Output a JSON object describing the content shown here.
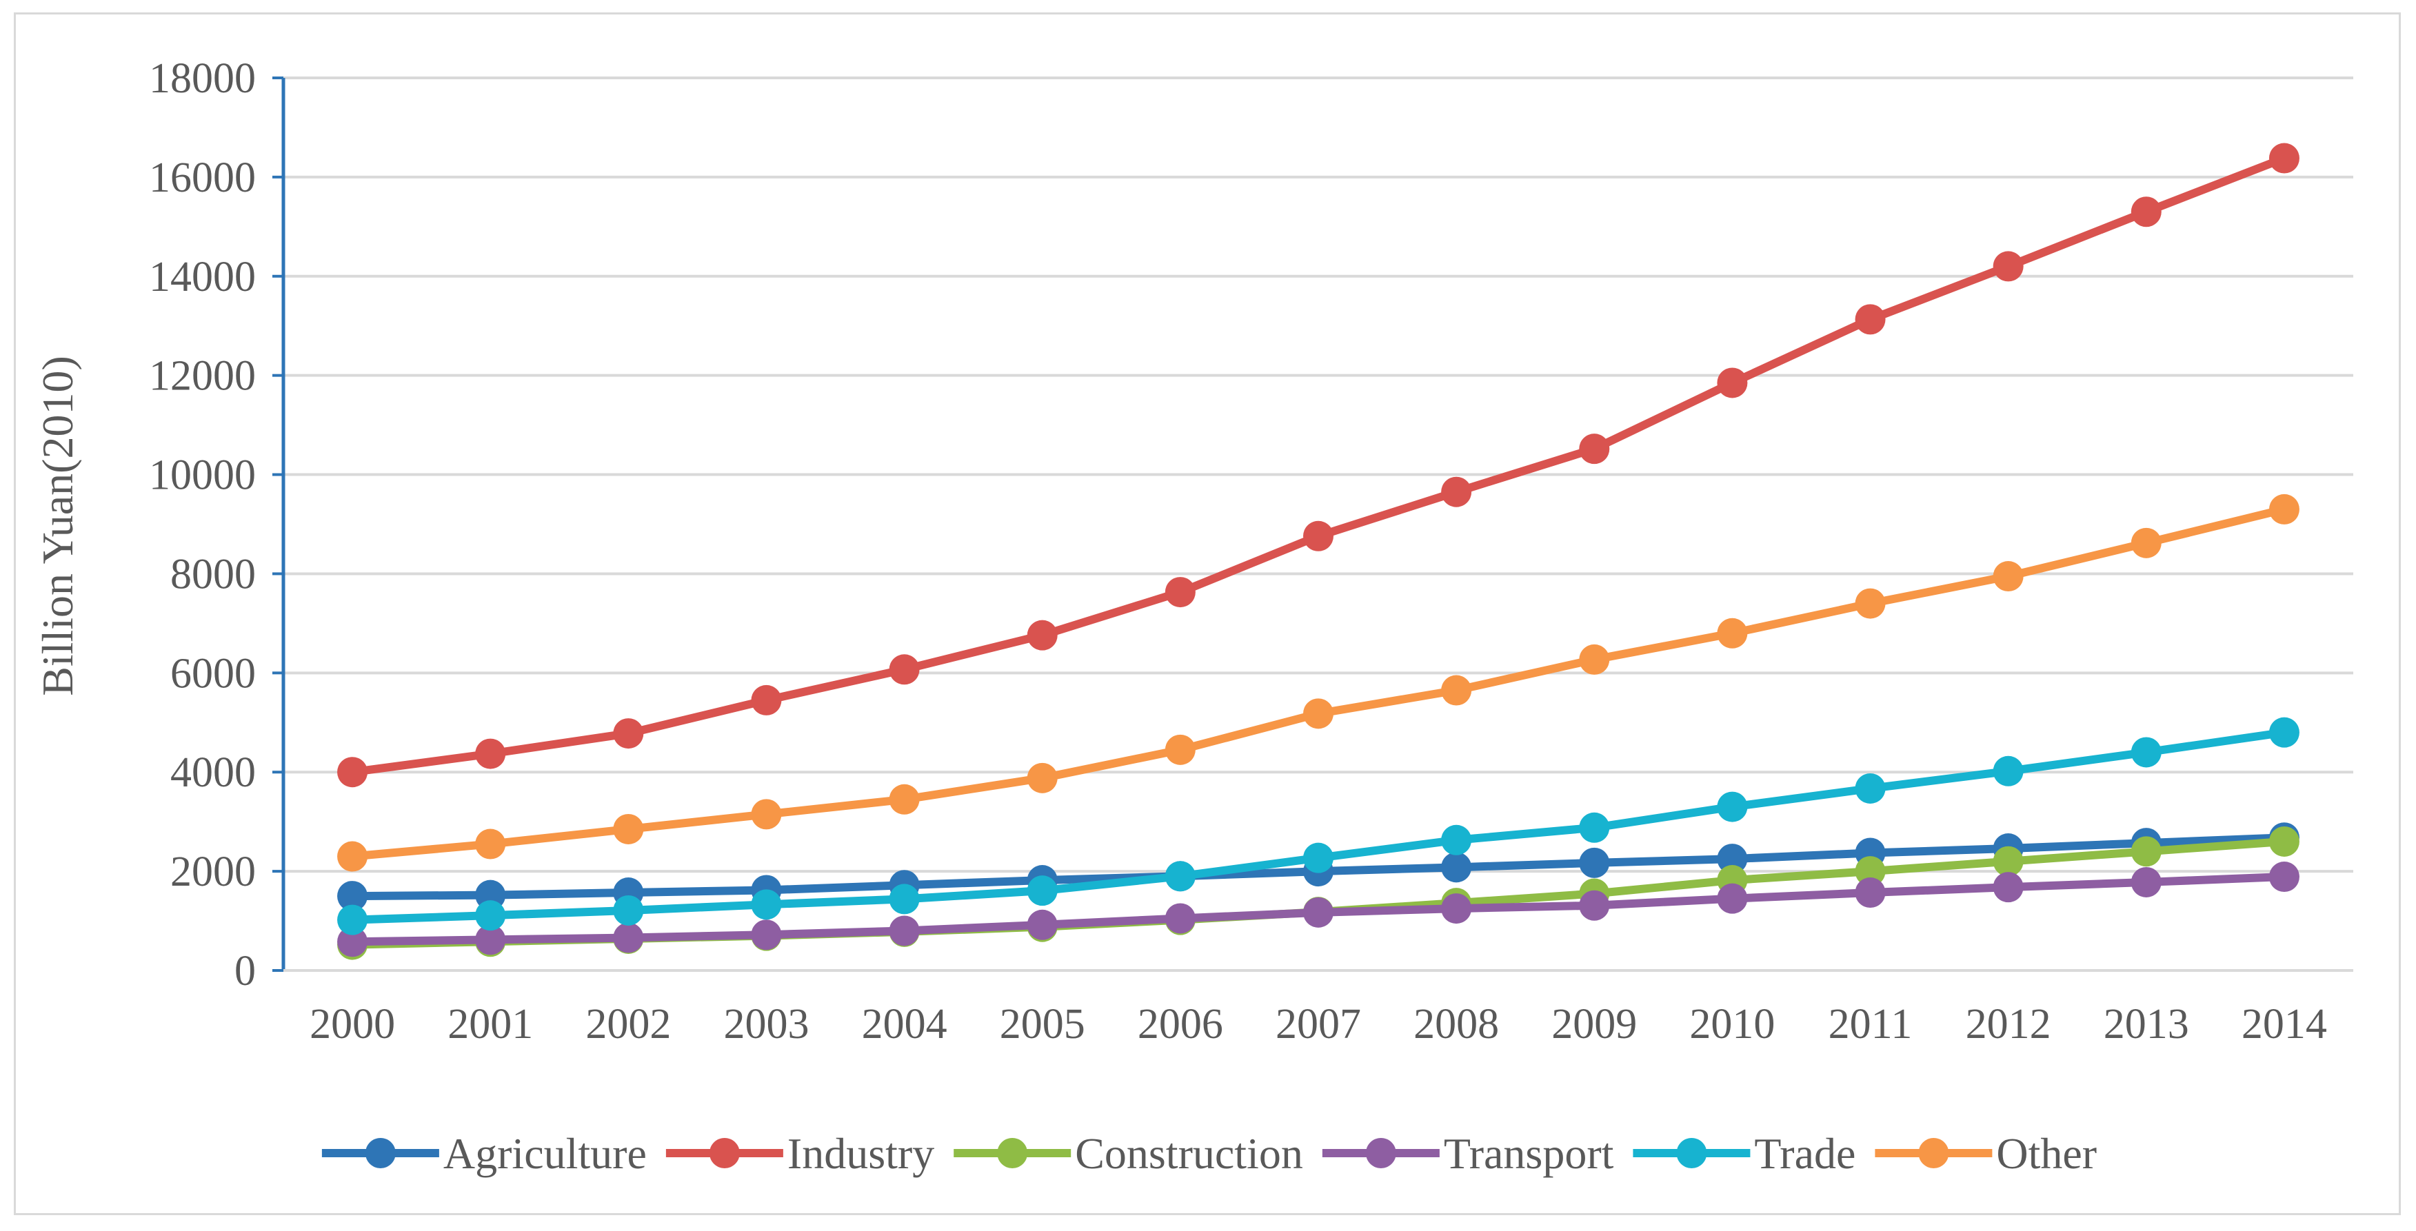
{
  "chart_data": {
    "type": "line",
    "title": "",
    "xlabel": "",
    "ylabel": "Billion Yuan(2010)",
    "ylim": [
      0,
      18000
    ],
    "yticks": [
      0,
      2000,
      4000,
      6000,
      8000,
      10000,
      12000,
      14000,
      16000,
      18000
    ],
    "grid": true,
    "legend_position": "bottom",
    "categories": [
      "2000",
      "2001",
      "2002",
      "2003",
      "2004",
      "2005",
      "2006",
      "2007",
      "2008",
      "2009",
      "2010",
      "2011",
      "2012",
      "2013",
      "2014"
    ],
    "series": [
      {
        "name": "Agriculture",
        "color": "#2e75b6",
        "values": [
          1500,
          1520,
          1570,
          1620,
          1720,
          1820,
          1900,
          2000,
          2080,
          2170,
          2250,
          2370,
          2460,
          2570,
          2680
        ]
      },
      {
        "name": "Industry",
        "color": "#d9534f",
        "values": [
          4000,
          4370,
          4780,
          5450,
          6070,
          6760,
          7630,
          8760,
          9650,
          10520,
          11850,
          13130,
          14200,
          15300,
          16380
        ]
      },
      {
        "name": "Construction",
        "color": "#8fbc45",
        "values": [
          520,
          580,
          640,
          700,
          780,
          880,
          1020,
          1180,
          1360,
          1550,
          1820,
          2000,
          2200,
          2400,
          2600
        ]
      },
      {
        "name": "Transport",
        "color": "#8e5ea2",
        "values": [
          580,
          620,
          660,
          720,
          800,
          920,
          1050,
          1170,
          1250,
          1310,
          1450,
          1570,
          1680,
          1780,
          1890
        ]
      },
      {
        "name": "Trade",
        "color": "#17b3d0",
        "values": [
          1020,
          1110,
          1210,
          1330,
          1440,
          1610,
          1900,
          2270,
          2630,
          2880,
          3300,
          3670,
          4020,
          4400,
          4800
        ]
      },
      {
        "name": "Other",
        "color": "#f79646",
        "values": [
          2300,
          2550,
          2850,
          3150,
          3450,
          3880,
          4450,
          5180,
          5650,
          6270,
          6800,
          7400,
          7950,
          8620,
          9300
        ]
      }
    ]
  }
}
